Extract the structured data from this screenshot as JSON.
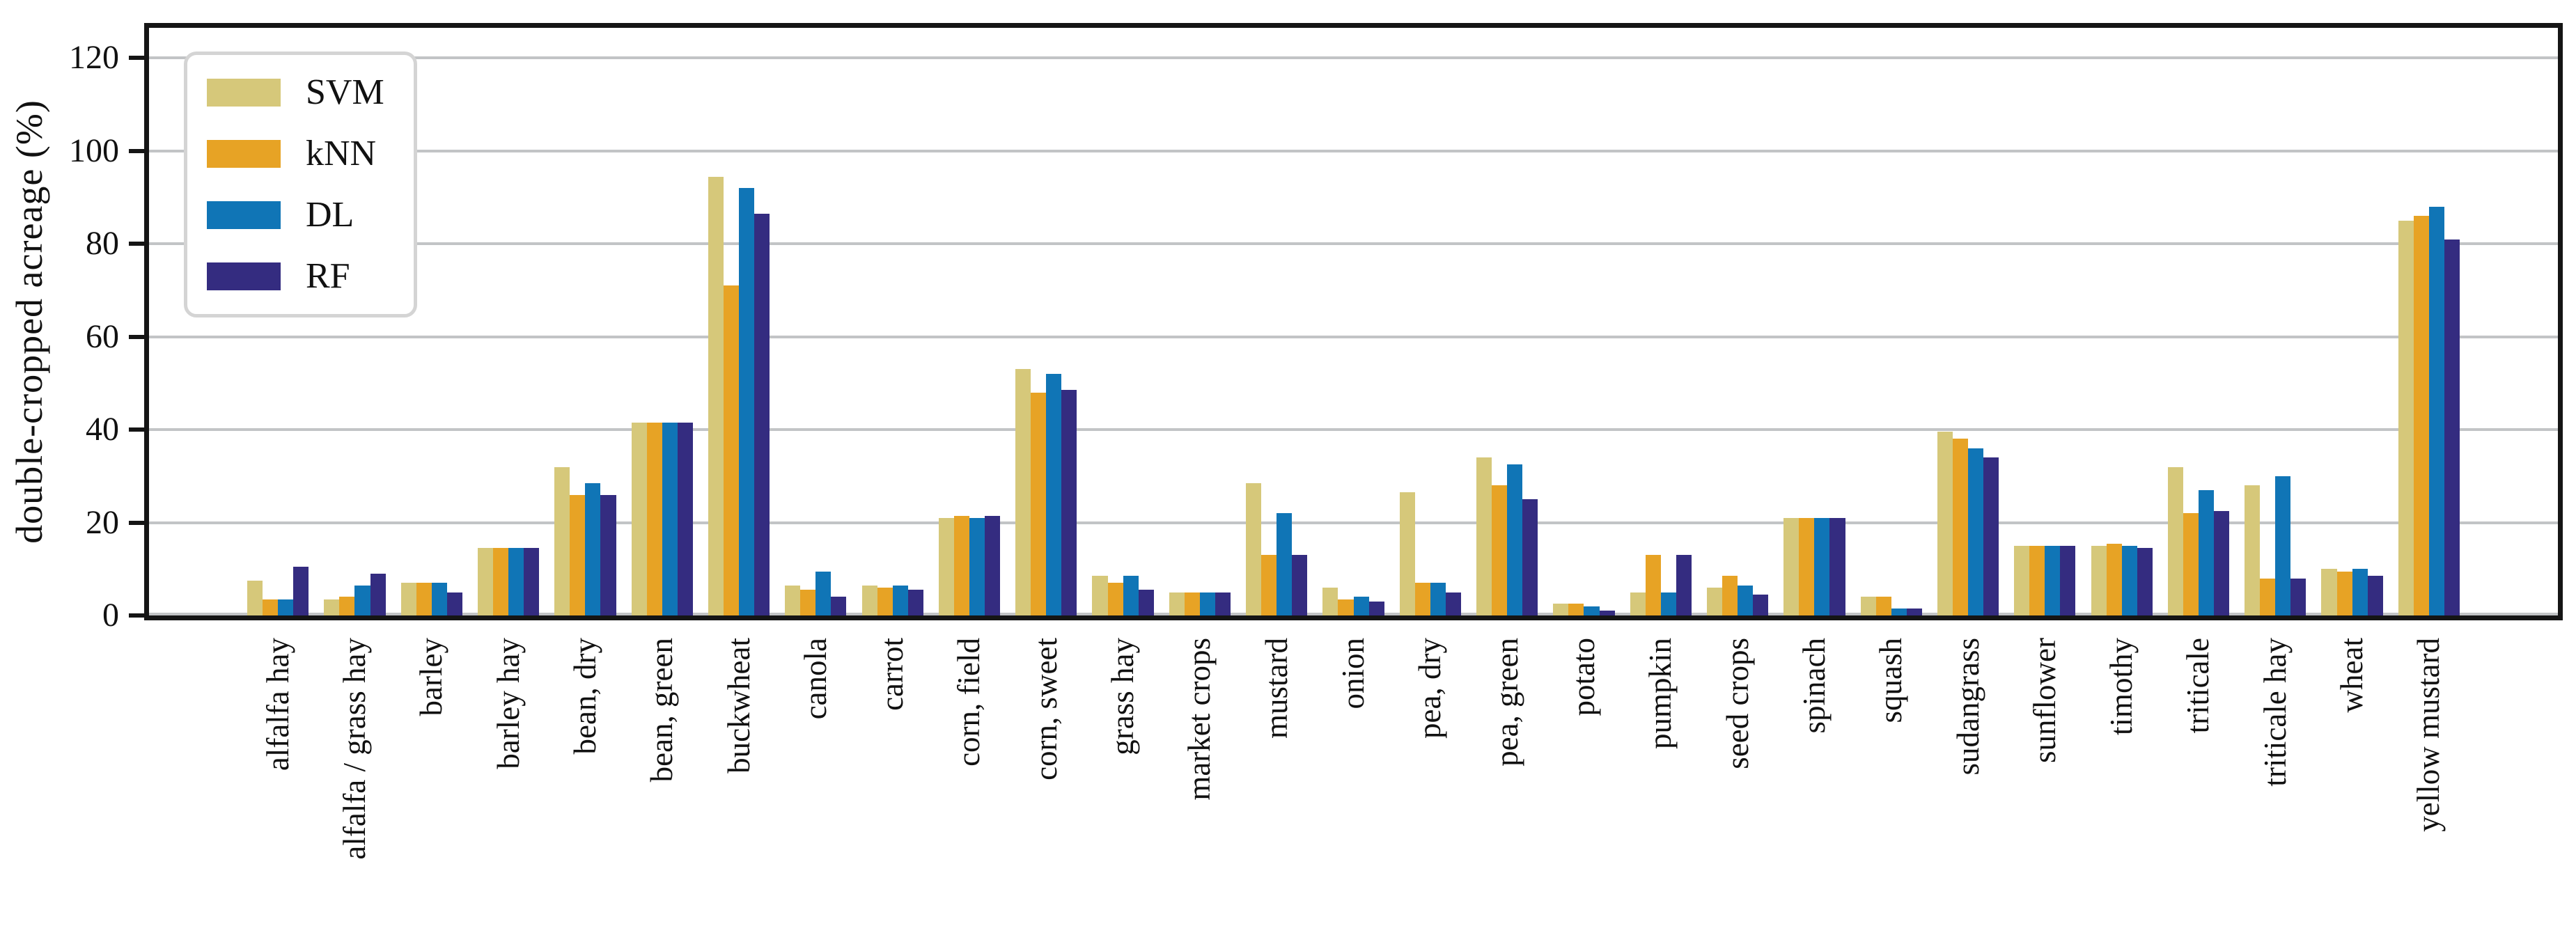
{
  "chart_data": {
    "type": "bar",
    "title": "",
    "xlabel": "",
    "ylabel": "double-cropped acreage (%)",
    "ylim": [
      0,
      126.5
    ],
    "yticks": [
      0,
      20,
      40,
      60,
      80,
      100,
      120
    ],
    "grid": true,
    "legend_position": "upper left",
    "categories": [
      "alfalfa hay",
      "alfalfa / grass hay",
      "barley",
      "barley hay",
      "bean, dry",
      "bean, green",
      "buckwheat",
      "canola",
      "carrot",
      "corn, field",
      "corn, sweet",
      "grass hay",
      "market crops",
      "mustard",
      "onion",
      "pea, dry",
      "pea, green",
      "potato",
      "pumpkin",
      "seed crops",
      "spinach",
      "squash",
      "sudangrass",
      "sunflower",
      "timothy",
      "triticale",
      "triticale hay",
      "wheat",
      "yellow mustard"
    ],
    "series": [
      {
        "name": "SVM",
        "color": "#d6c87a",
        "values": [
          7.5,
          3.5,
          7,
          14.5,
          32,
          41.5,
          94.5,
          6.5,
          6.5,
          21,
          53,
          8.5,
          5,
          28.5,
          6,
          26.5,
          34,
          2.5,
          5,
          6,
          21,
          4,
          39.5,
          15,
          15,
          32,
          28,
          10,
          85
        ]
      },
      {
        "name": "kNN",
        "color": "#e7a325",
        "values": [
          3.5,
          4,
          7,
          14.5,
          26,
          41.5,
          71,
          5.5,
          6,
          21.5,
          48,
          7,
          5,
          13,
          3.5,
          7,
          28,
          2.5,
          13,
          8.5,
          21,
          4,
          38,
          15,
          15.5,
          22,
          8,
          9.5,
          86
        ]
      },
      {
        "name": "DL",
        "color": "#1075b6",
        "values": [
          3.5,
          6.5,
          7,
          14.5,
          28.5,
          41.5,
          92,
          9.5,
          6.5,
          21,
          52,
          8.5,
          5,
          22,
          4,
          7,
          32.5,
          2,
          5,
          6.5,
          21,
          1.5,
          36,
          15,
          15,
          27,
          30,
          10,
          88
        ]
      },
      {
        "name": "RF",
        "color": "#342c80",
        "values": [
          10.5,
          9,
          5,
          14.5,
          26,
          41.5,
          86.5,
          4,
          5.5,
          21.5,
          48.5,
          5.5,
          5,
          13,
          3,
          5,
          25,
          1,
          13,
          4.5,
          21,
          1.5,
          34,
          15,
          14.5,
          22.5,
          8,
          8.5,
          81
        ]
      }
    ],
    "colors": {
      "gridline": "#c2c4c6",
      "spine": "#151515",
      "background": "#ffffff",
      "legend_border": "#d4d4d4"
    }
  }
}
